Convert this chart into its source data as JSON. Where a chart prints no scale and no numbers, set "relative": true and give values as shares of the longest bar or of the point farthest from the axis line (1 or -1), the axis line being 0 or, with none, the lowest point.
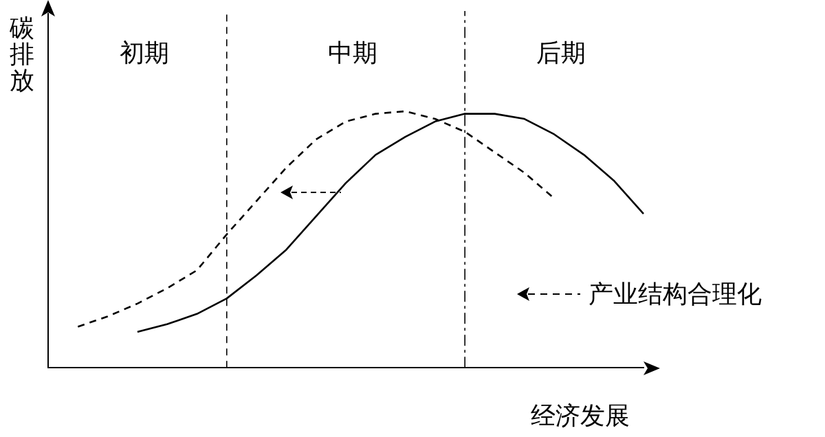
{
  "chart_data": {
    "type": "line",
    "relative": true,
    "xlabel": "经济发展",
    "ylabel": "碳排放",
    "categories": [
      null,
      null,
      null,
      null,
      null,
      null,
      null,
      null,
      null,
      null,
      null,
      null,
      null,
      null,
      null,
      null,
      null,
      null,
      null,
      null,
      null
    ],
    "grid": false,
    "legend": "right",
    "marker": "none",
    "series": [
      {
        "color": "#000000",
        "line_style": "solid",
        "values": [
          null,
          null,
          null,
          0.14,
          0.17,
          0.21,
          0.27,
          0.36,
          0.46,
          0.59,
          0.72,
          0.83,
          0.9,
          0.96,
          0.99,
          0.99,
          0.97,
          0.91,
          0.83,
          0.73,
          0.6
        ]
      },
      {
        "name": "产业结构合理化",
        "color": "#000000",
        "line_style": "dashed",
        "values": [
          null,
          0.16,
          0.2,
          0.25,
          0.31,
          0.38,
          0.52,
          0.65,
          0.78,
          0.89,
          0.96,
          0.99,
          1,
          0.97,
          0.92,
          0.84,
          0.76,
          0.66,
          null,
          null,
          null
        ]
      }
    ],
    "annotations": [
      "初期",
      "中期",
      "后期"
    ]
  }
}
